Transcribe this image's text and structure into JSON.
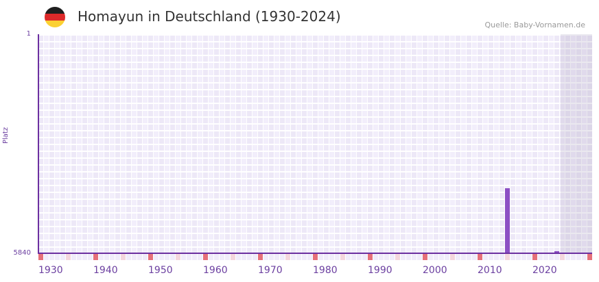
{
  "header": {
    "title": "Homayun in Deutschland (1930-2024)",
    "source": "Quelle: Baby-Vornamen.de",
    "flag_icon": "germany-flag-icon",
    "flag_colors": [
      "#1f1f1f",
      "#dd2a2a",
      "#fbd133"
    ]
  },
  "colors": {
    "bar": "#8c4fc4",
    "axis": "#6b2fa0",
    "decade_marker": "#e5707a",
    "half_decade_marker": "#f4d6dd",
    "label": "#6b3fa0"
  },
  "chart_data": {
    "type": "bar",
    "title": "Homayun in Deutschland (1930-2024)",
    "xlabel": "",
    "ylabel": "Platz",
    "y_inverted": true,
    "ylim": [
      1,
      5840
    ],
    "xlim": [
      1930,
      2030
    ],
    "x_ticks": [
      "1930",
      "1940",
      "1950",
      "1960",
      "1970",
      "1980",
      "1990",
      "2000",
      "2010",
      "2020"
    ],
    "y_ticks": [
      "1",
      "5840"
    ],
    "x": [
      2015,
      2024
    ],
    "values": [
      4107,
      5785
    ],
    "future_shaded_from": 2025,
    "grid": true,
    "legend": null
  },
  "axis": {
    "y_top_label": "1",
    "y_bottom_label": "5840",
    "y_title": "Platz",
    "x_labels": [
      "1930",
      "1940",
      "1950",
      "1960",
      "1970",
      "1980",
      "1990",
      "2000",
      "2010",
      "2020"
    ]
  }
}
